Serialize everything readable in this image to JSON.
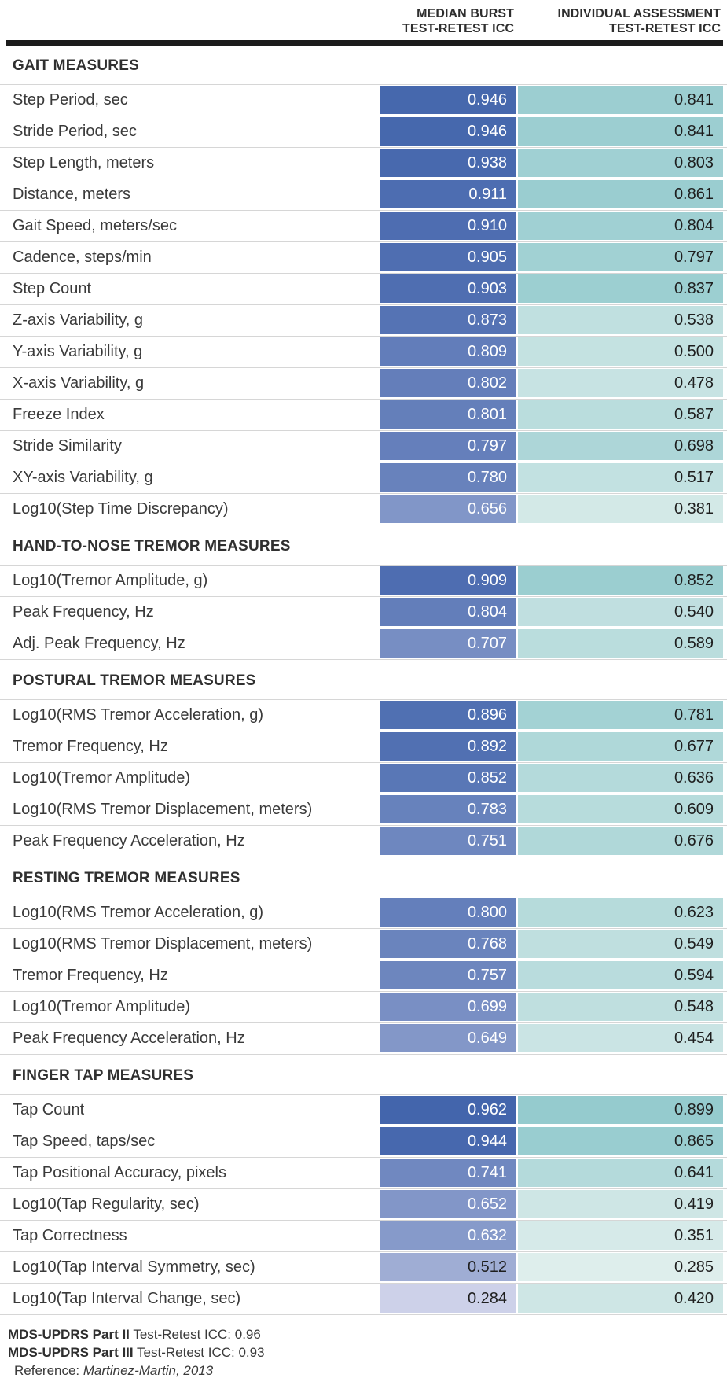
{
  "header": {
    "median_line1": "MEDIAN BURST",
    "median_line2": "TEST-RETEST ICC",
    "individual_line1": "INDIVIDUAL ASSESSMENT",
    "individual_line2": "TEST-RETEST ICC"
  },
  "colors": {
    "blue_dark": "#4365ac",
    "blue_light": "#cdd1e9",
    "blue_domain": [
      0.284,
      0.962
    ],
    "teal_dark": "#95cbce",
    "teal_light": "#deeeec",
    "teal_domain": [
      0.285,
      0.899
    ],
    "blue_white_text_min": 0.6,
    "value_dark_text": "#1e1e1e",
    "value_white_text": "#ffffff"
  },
  "chart_data": {
    "type": "heatmap",
    "columns": [
      "MEDIAN BURST TEST-RETEST ICC",
      "INDIVIDUAL ASSESSMENT TEST-RETEST ICC"
    ],
    "value_format": "0.000",
    "sections": [
      {
        "title": "GAIT MEASURES",
        "rows": [
          {
            "label": "Step Period, sec",
            "median": 0.946,
            "individual": 0.841
          },
          {
            "label": "Stride Period, sec",
            "median": 0.946,
            "individual": 0.841
          },
          {
            "label": "Step Length, meters",
            "median": 0.938,
            "individual": 0.803
          },
          {
            "label": "Distance, meters",
            "median": 0.911,
            "individual": 0.861
          },
          {
            "label": "Gait Speed, meters/sec",
            "median": 0.91,
            "individual": 0.804
          },
          {
            "label": "Cadence, steps/min",
            "median": 0.905,
            "individual": 0.797
          },
          {
            "label": "Step Count",
            "median": 0.903,
            "individual": 0.837
          },
          {
            "label": "Z-axis Variability, g",
            "median": 0.873,
            "individual": 0.538
          },
          {
            "label": "Y-axis Variability, g",
            "median": 0.809,
            "individual": 0.5
          },
          {
            "label": "X-axis Variability, g",
            "median": 0.802,
            "individual": 0.478
          },
          {
            "label": "Freeze Index",
            "median": 0.801,
            "individual": 0.587
          },
          {
            "label": "Stride Similarity",
            "median": 0.797,
            "individual": 0.698
          },
          {
            "label": "XY-axis Variability, g",
            "median": 0.78,
            "individual": 0.517
          },
          {
            "label": "Log10(Step Time Discrepancy)",
            "median": 0.656,
            "individual": 0.381
          }
        ]
      },
      {
        "title": "HAND-TO-NOSE TREMOR MEASURES",
        "rows": [
          {
            "label": "Log10(Tremor Amplitude, g)",
            "median": 0.909,
            "individual": 0.852
          },
          {
            "label": "Peak Frequency, Hz",
            "median": 0.804,
            "individual": 0.54
          },
          {
            "label": "Adj. Peak Frequency, Hz",
            "median": 0.707,
            "individual": 0.589
          }
        ]
      },
      {
        "title": "POSTURAL TREMOR MEASURES",
        "rows": [
          {
            "label": "Log10(RMS Tremor Acceleration, g)",
            "median": 0.896,
            "individual": 0.781
          },
          {
            "label": "Tremor Frequency, Hz",
            "median": 0.892,
            "individual": 0.677
          },
          {
            "label": "Log10(Tremor Amplitude)",
            "median": 0.852,
            "individual": 0.636
          },
          {
            "label": "Log10(RMS Tremor Displacement, meters)",
            "median": 0.783,
            "individual": 0.609
          },
          {
            "label": "Peak Frequency Acceleration, Hz",
            "median": 0.751,
            "individual": 0.676
          }
        ]
      },
      {
        "title": "RESTING TREMOR MEASURES",
        "rows": [
          {
            "label": "Log10(RMS Tremor Acceleration, g)",
            "median": 0.8,
            "individual": 0.623
          },
          {
            "label": "Log10(RMS Tremor Displacement, meters)",
            "median": 0.768,
            "individual": 0.549
          },
          {
            "label": "Tremor Frequency, Hz",
            "median": 0.757,
            "individual": 0.594
          },
          {
            "label": "Log10(Tremor Amplitude)",
            "median": 0.699,
            "individual": 0.548
          },
          {
            "label": "Peak Frequency Acceleration, Hz",
            "median": 0.649,
            "individual": 0.454
          }
        ]
      },
      {
        "title": "FINGER TAP MEASURES",
        "rows": [
          {
            "label": "Tap Count",
            "median": 0.962,
            "individual": 0.899
          },
          {
            "label": "Tap Speed, taps/sec",
            "median": 0.944,
            "individual": 0.865
          },
          {
            "label": "Tap Positional Accuracy, pixels",
            "median": 0.741,
            "individual": 0.641
          },
          {
            "label": "Log10(Tap Regularity, sec)",
            "median": 0.652,
            "individual": 0.419
          },
          {
            "label": "Tap Correctness",
            "median": 0.632,
            "individual": 0.351
          },
          {
            "label": "Log10(Tap Interval Symmetry, sec)",
            "median": 0.512,
            "individual": 0.285
          },
          {
            "label": "Log10(Tap Interval Change, sec)",
            "median": 0.284,
            "individual": 0.42
          }
        ]
      }
    ]
  },
  "footer": {
    "line1_bold": "MDS-UPDRS Part II",
    "line1_rest": " Test-Retest ICC: 0.96",
    "line2_bold": "MDS-UPDRS Part III",
    "line2_rest": " Test-Retest ICC: 0.93",
    "ref_label": "Reference: ",
    "ref_value": "Martinez-Martin, 2013"
  }
}
